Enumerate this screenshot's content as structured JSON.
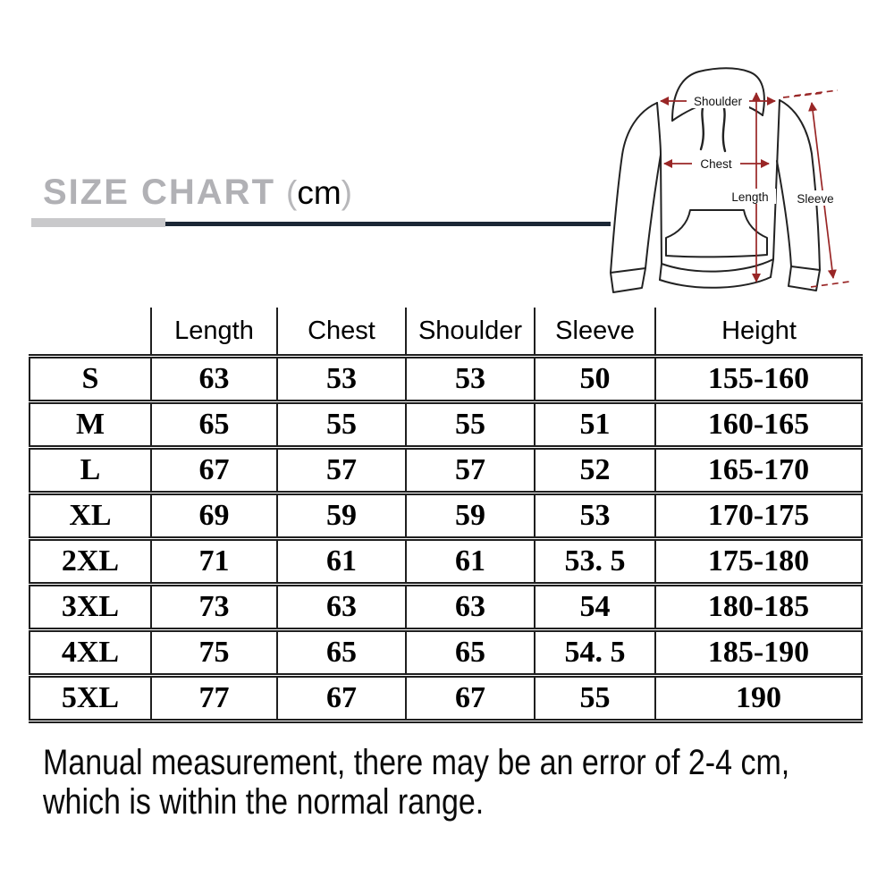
{
  "title": {
    "main": "SIZE CHART",
    "paren_open": "(",
    "unit": "cm",
    "paren_close": ")"
  },
  "diagram": {
    "labels": {
      "shoulder": "Shoulder",
      "chest": "Chest",
      "length": "Length",
      "sleeve": "Sleeve"
    }
  },
  "table": {
    "headers": [
      "",
      "Length",
      "Chest",
      "Shoulder",
      "Sleeve",
      "Height"
    ],
    "rows": [
      [
        "S",
        "63",
        "53",
        "53",
        "50",
        "155-160"
      ],
      [
        "M",
        "65",
        "55",
        "55",
        "51",
        "160-165"
      ],
      [
        "L",
        "67",
        "57",
        "57",
        "52",
        "165-170"
      ],
      [
        "XL",
        "69",
        "59",
        "59",
        "53",
        "170-175"
      ],
      [
        "2XL",
        "71",
        "61",
        "61",
        "53. 5",
        "175-180"
      ],
      [
        "3XL",
        "73",
        "63",
        "63",
        "54",
        "180-185"
      ],
      [
        "4XL",
        "75",
        "65",
        "65",
        "54. 5",
        "185-190"
      ],
      [
        "5XL",
        "77",
        "67",
        "67",
        "55",
        "190"
      ]
    ]
  },
  "note": {
    "line1": "Manual measurement, there may be an error of 2-4 cm,",
    "line2": "which is within the normal range."
  },
  "colors": {
    "arrow_red": "#992626",
    "rule_navy": "#1b2735",
    "rule_gray": "#c9c9cb",
    "title_gray": "#b1b1b5",
    "table_border": "#1f1f1f"
  }
}
